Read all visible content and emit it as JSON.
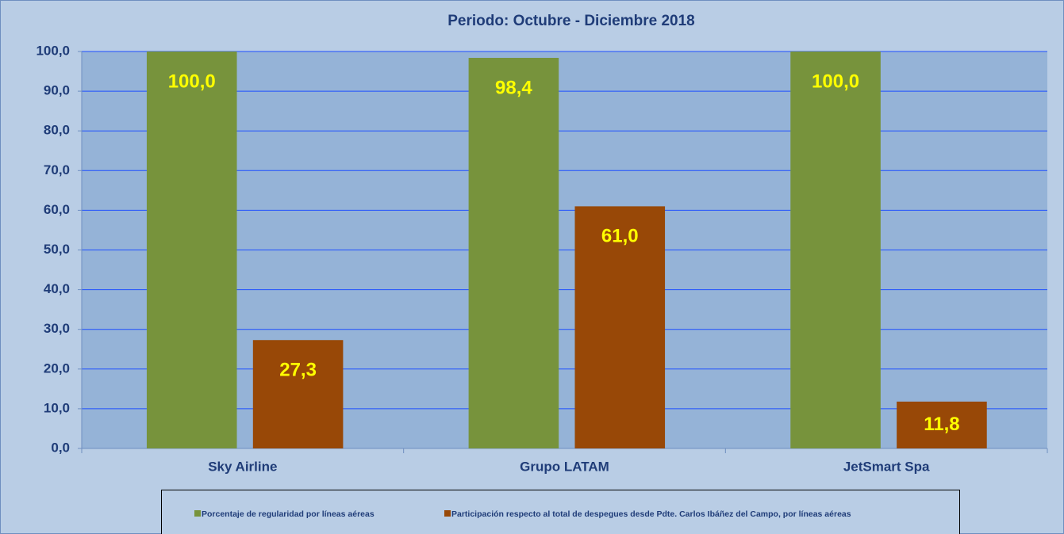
{
  "chart_data": {
    "type": "bar",
    "title": "Periodo: Octubre - Diciembre 2018",
    "categories": [
      "Sky Airline",
      "Grupo LATAM",
      "JetSmart Spa"
    ],
    "series": [
      {
        "name": "Porcentaje de regularidad por líneas aéreas",
        "color": "#77933c",
        "values": [
          100,
          98.4,
          100
        ],
        "value_labels": [
          "100,0",
          "98,4",
          "100,0"
        ]
      },
      {
        "name": "Participación respecto al total de despegues desde Pdte. Carlos Ibáñez del Campo, por líneas aéreas",
        "color": "#984807",
        "values": [
          27.3,
          61,
          11.8
        ],
        "value_labels": [
          "27,3",
          "61,0",
          "11,8"
        ]
      }
    ],
    "ylim": [
      0,
      100
    ],
    "yticks": [
      {
        "value": 0,
        "label": "0,0"
      },
      {
        "value": 10,
        "label": "10,0"
      },
      {
        "value": 20,
        "label": "20,0"
      },
      {
        "value": 30,
        "label": "30,0"
      },
      {
        "value": 40,
        "label": "40,0"
      },
      {
        "value": 50,
        "label": "50,0"
      },
      {
        "value": 60,
        "label": "60,0"
      },
      {
        "value": 70,
        "label": "70,0"
      },
      {
        "value": 80,
        "label": "80,0"
      },
      {
        "value": 90,
        "label": "90,0"
      },
      {
        "value": 100,
        "label": "100,0"
      }
    ],
    "grid": true,
    "legend": "bottom"
  }
}
